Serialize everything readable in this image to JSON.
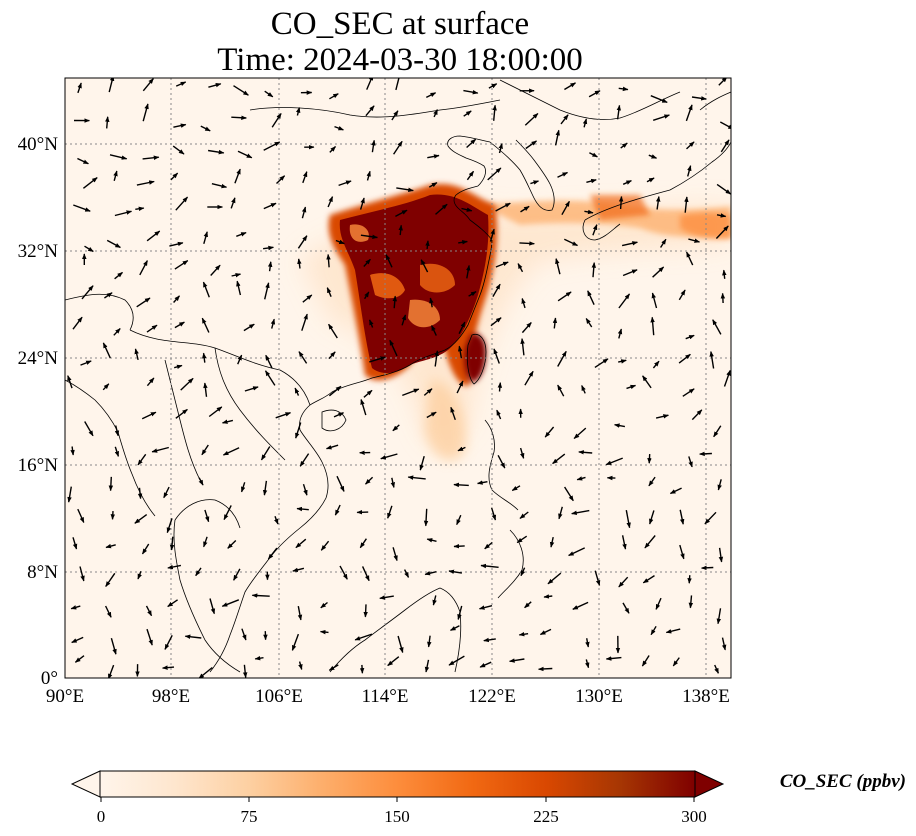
{
  "title": {
    "line1": "CO_SEC at surface",
    "line2": "Time: 2024-03-30 18:00:00"
  },
  "map": {
    "lon_range": [
      90,
      139.5
    ],
    "lat_range": [
      0,
      45
    ],
    "lon_ticks": [
      "90°E",
      "98°E",
      "106°E",
      "114°E",
      "122°E",
      "130°E",
      "138°E"
    ],
    "lat_ticks": [
      "0°",
      "8°N",
      "16°N",
      "24°N",
      "32°N",
      "40°N"
    ],
    "gridlines": true,
    "field_colors": {
      "background": "#fff5eb",
      "light": "#fdd0a2",
      "medium": "#f16913",
      "high": "#d94801",
      "max": "#7f0000"
    }
  },
  "colorbar": {
    "ticks": [
      "0",
      "75",
      "150",
      "225",
      "300"
    ],
    "label": "CO_SEC (ppbv)",
    "extend": "both",
    "cmap": [
      "#fff5eb",
      "#fee6ce",
      "#fdd0a2",
      "#fdae6b",
      "#fd8d3c",
      "#f16913",
      "#d94801",
      "#a63603",
      "#7f0000"
    ]
  }
}
